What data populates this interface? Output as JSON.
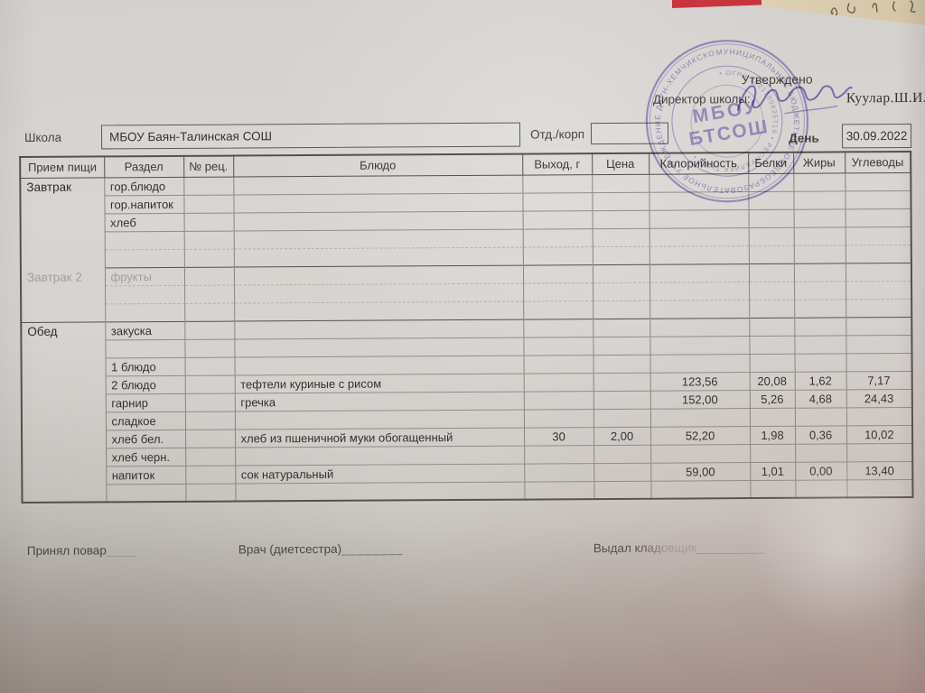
{
  "colors": {
    "ink": "#3e3b38",
    "stamp_purple": "#6b58a5",
    "red_strip": "#c8353e",
    "beige_paper": "#d8c9ab"
  },
  "approval": {
    "approved_label": "Утверждено",
    "director_label": "Директор школы:",
    "director_name": "Куулар.Ш.И."
  },
  "fields": {
    "school_label": "Школа",
    "school_value": "МБОУ Баян-Талинская СОШ",
    "dept_label": "Отд./корп",
    "dept_value": "",
    "day_label": "День",
    "day_value": "30.09.2022"
  },
  "stamp": {
    "outer_ring": "МУНИЦИПАЛЬНОЕ БЮДЖЕТНОЕ ОБЩЕОБРАЗОВАТЕЛЬНОЕ УЧРЕЖДЕНИЕ ДЗУН-ХЕМЧИКСКОГО КОЖУУНА",
    "inner_ring": "• ОГРН 1021700625719 • РЕСПУБЛИКА ТЫВА •",
    "center_line1": "МБОУ",
    "center_line2": "БТСОШ"
  },
  "table": {
    "headers": [
      "Прием пищи",
      "Раздел",
      "№ рец.",
      "Блюдо",
      "Выход, г",
      "Цена",
      "Калорийность",
      "Белки",
      "Жиры",
      "Углеводы"
    ],
    "sections": [
      {
        "meal": "Завтрак",
        "faint": false,
        "rows": [
          {
            "razdel": "гор.блюдо"
          },
          {
            "razdel": "гор.напиток"
          },
          {
            "razdel": "хлеб"
          },
          {
            "faint": true
          },
          {
            "faint": true
          }
        ]
      },
      {
        "meal": "Завтрак 2",
        "faint": true,
        "rows": [
          {
            "razdel": "фрукты",
            "faint": true
          },
          {
            "faint": true
          },
          {
            "faint": true
          }
        ]
      },
      {
        "meal": "Обед",
        "faint": false,
        "rows": [
          {
            "razdel": "закуска"
          },
          {},
          {
            "razdel": "1 блюдо"
          },
          {
            "razdel": "2 блюдо",
            "dish": "тефтели куриные с рисом",
            "cal": "123,56",
            "prot": "20,08",
            "fat": "1,62",
            "carb": "7,17"
          },
          {
            "razdel": "гарнир",
            "dish": "гречка",
            "cal": "152,00",
            "prot": "5,26",
            "fat": "4,68",
            "carb": "24,43"
          },
          {
            "razdel": "сладкое"
          },
          {
            "razdel": "хлеб бел.",
            "dish": "хлеб из пшеничной муки обогащенный",
            "out": "30",
            "price": "2,00",
            "cal": "52,20",
            "prot": "1,98",
            "fat": "0,36",
            "carb": "10,02"
          },
          {
            "razdel": "хлеб черн."
          },
          {
            "razdel": "напиток",
            "dish": "сок натуральный",
            "cal": "59,00",
            "prot": "1,01",
            "fat": "0,00",
            "carb": "13,40"
          },
          {}
        ]
      }
    ]
  },
  "footer": {
    "cook_label": "Принял повар",
    "cook_line": "____",
    "doctor_label": "Врач (диетсестра)",
    "doctor_line": "________",
    "issued_label": "Выдал кладовщик",
    "issued_line": "_________"
  }
}
